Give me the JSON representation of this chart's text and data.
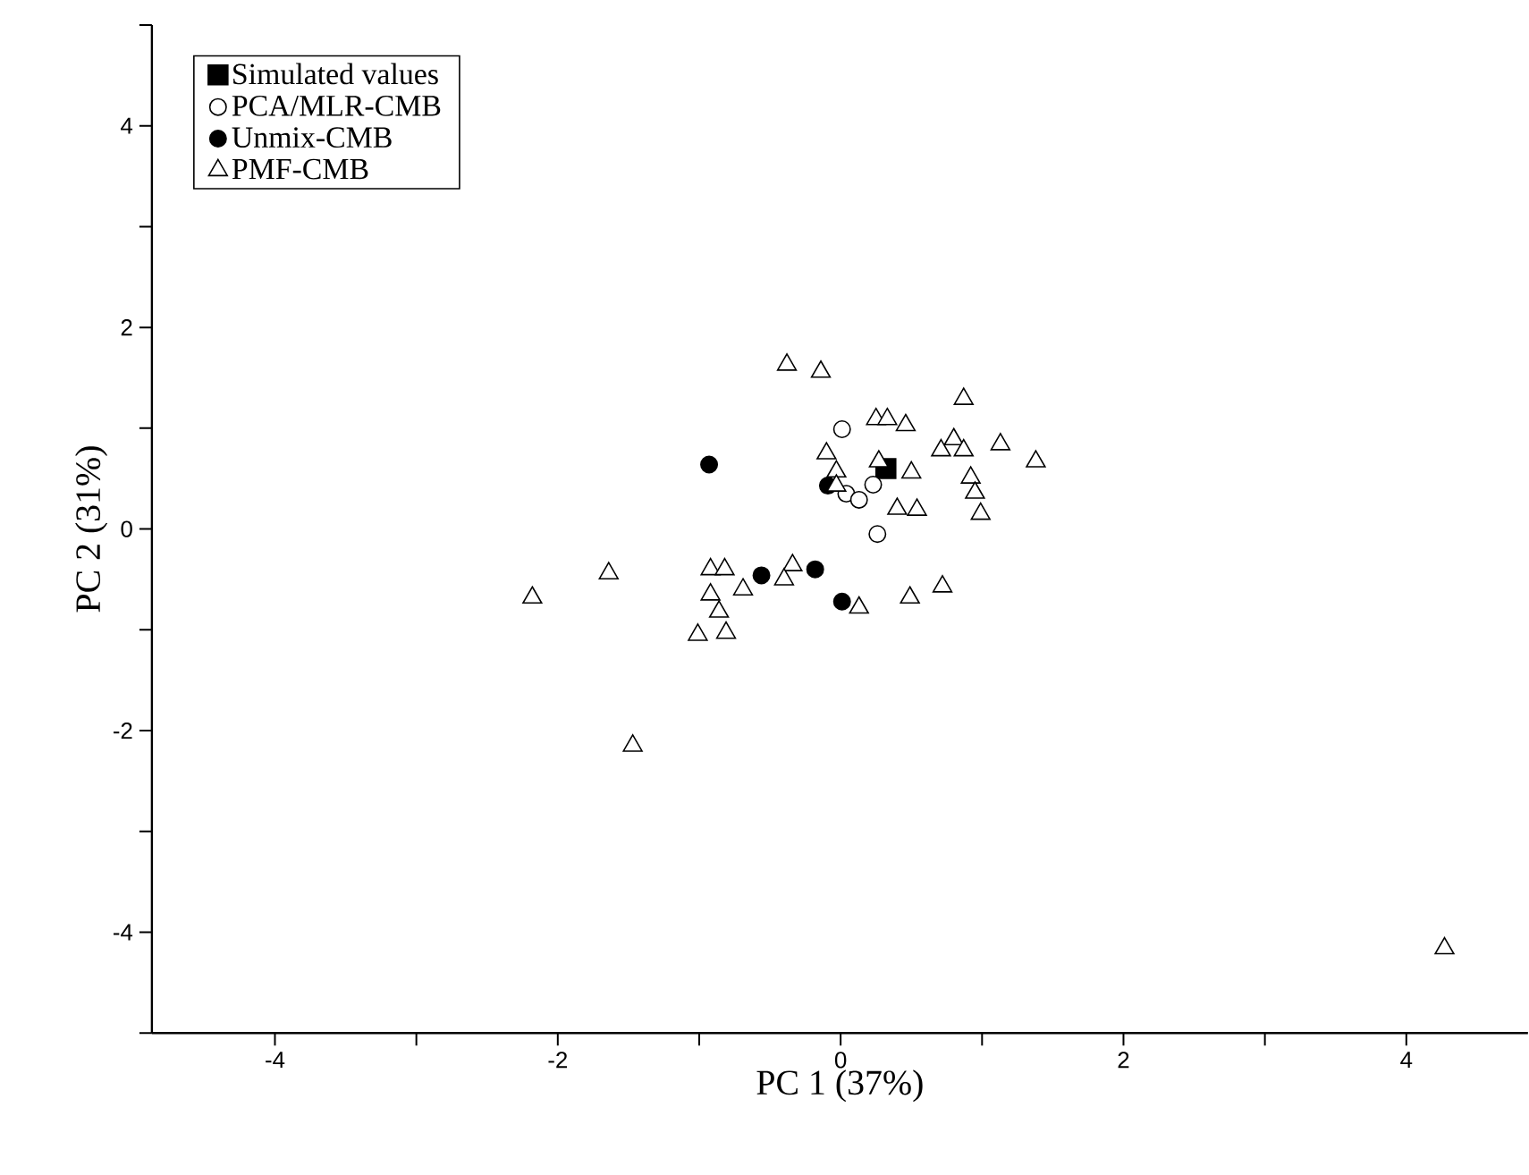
{
  "chart_data": {
    "type": "scatter",
    "xlabel": "PC 1 (37%)",
    "ylabel": "PC 2 (31%)",
    "xlim": [
      -4.87,
      4.86
    ],
    "ylim": [
      -5,
      5
    ],
    "xticks": [
      -4,
      {
        "value": -3,
        "label": null
      },
      -2,
      {
        "value": -1,
        "label": null
      },
      0,
      {
        "value": 1,
        "label": null
      },
      2,
      {
        "value": 3,
        "label": null
      },
      4
    ],
    "yticks": [
      {
        "value": -5,
        "label": null
      },
      -4,
      {
        "value": -3,
        "label": null
      },
      -2,
      {
        "value": -1,
        "label": null
      },
      0,
      {
        "value": 1,
        "label": null
      },
      2,
      {
        "value": 3,
        "label": null
      },
      4,
      {
        "value": 5,
        "label": null
      }
    ],
    "legend": "top left",
    "grid": false,
    "series": [
      {
        "name": "Simulated values",
        "color": "#000000",
        "marker": "square",
        "x": [
          0.32
        ],
        "values": [
          0.6
        ]
      },
      {
        "name": "PCA/MLR-CMB",
        "color": "#ffffff",
        "marker": "circle",
        "x": [
          0.01,
          0.23,
          0.04,
          0.13,
          0.26
        ],
        "values": [
          0.99,
          0.44,
          0.35,
          0.29,
          -0.05
        ]
      },
      {
        "name": "Unmix-CMB",
        "color": "#000000",
        "marker": "circle",
        "x": [
          -0.93,
          -0.09,
          -0.56,
          -0.18,
          0.01
        ],
        "values": [
          0.64,
          0.43,
          -0.46,
          -0.4,
          -0.72
        ]
      },
      {
        "name": "PMF-CMB",
        "color": "#ffffff",
        "marker": "triangle",
        "x": [
          -0.38,
          -0.14,
          0.87,
          0.25,
          0.33,
          0.46,
          0.8,
          0.71,
          0.87,
          1.13,
          1.38,
          -0.1,
          -0.03,
          -0.03,
          0.27,
          0.5,
          0.92,
          0.95,
          0.99,
          0.4,
          0.54,
          -2.18,
          -1.64,
          -0.92,
          -0.82,
          -0.34,
          -0.4,
          -0.69,
          -0.92,
          0.49,
          0.72,
          0.13,
          -0.86,
          -1.01,
          -0.81,
          -1.47,
          4.27
        ],
        "values": [
          1.63,
          1.56,
          1.29,
          1.09,
          1.09,
          1.03,
          0.89,
          0.78,
          0.78,
          0.84,
          0.67,
          0.75,
          0.57,
          0.43,
          0.67,
          0.56,
          0.51,
          0.36,
          0.15,
          0.2,
          0.19,
          -0.68,
          -0.44,
          -0.4,
          -0.4,
          -0.36,
          -0.5,
          -0.6,
          -0.65,
          -0.68,
          -0.57,
          -0.78,
          -0.82,
          -1.05,
          -1.03,
          -2.15,
          -4.16
        ]
      }
    ]
  }
}
